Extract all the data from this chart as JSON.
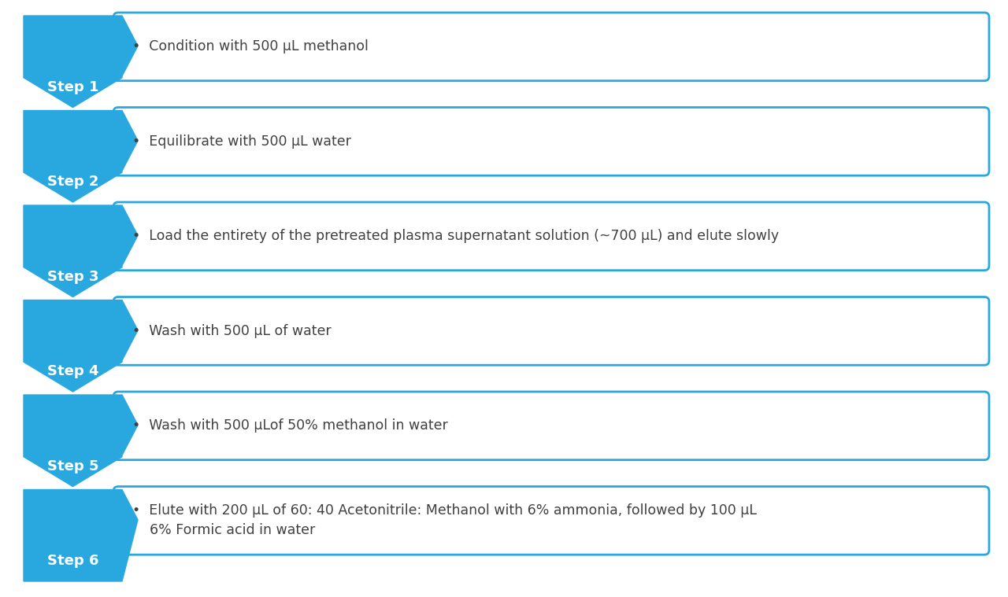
{
  "steps": [
    {
      "label": "Step 1",
      "text": "•  Condition with 500 μL methanol"
    },
    {
      "label": "Step 2",
      "text": "•  Equilibrate with 500 μL water"
    },
    {
      "label": "Step 3",
      "text": "•  Load the entirety of the pretreated plasma supernatant solution (~700 μL) and elute slowly"
    },
    {
      "label": "Step 4",
      "text": "•  Wash with 500 μL of water"
    },
    {
      "label": "Step 5",
      "text": "•  Wash with 500 μLof 50% methanol in water"
    },
    {
      "label": "Step 6",
      "text": "•  Elute with 200 μL of 60: 40 Acetonitrile: Methanol with 6% ammonia, followed by 100 μL\n    6% Formic acid in water"
    }
  ],
  "arrow_color": "#29A8E0",
  "box_edge_color": "#29A8E0",
  "box_face_color": "#FFFFFF",
  "label_text_color": "#FFFFFF",
  "step_text_color": "#404040",
  "background_color": "#FFFFFF",
  "label_font_size": 13,
  "text_font_size": 12.5
}
